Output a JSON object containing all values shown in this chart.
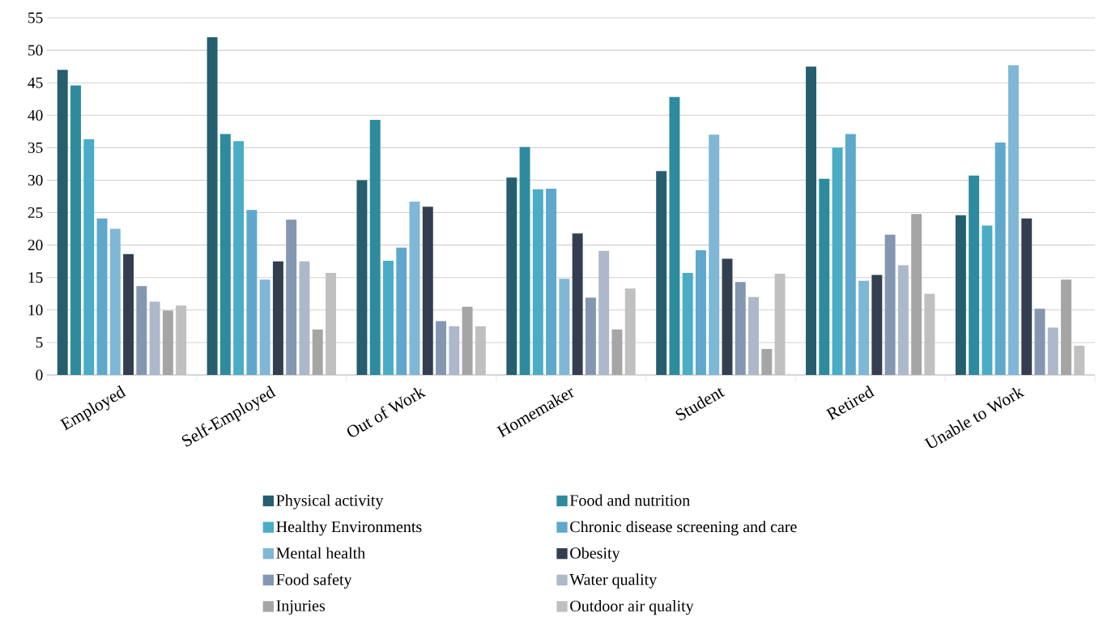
{
  "chart_data": {
    "type": "bar",
    "categories": [
      "Employed",
      "Self-Employed",
      "Out of Work",
      "Homemaker",
      "Student",
      "Retired",
      "Unable to Work"
    ],
    "series": [
      {
        "name": "Physical activity",
        "color": "#255e6e",
        "values": [
          47,
          52,
          30,
          30.4,
          31.4,
          47.5,
          24.6
        ]
      },
      {
        "name": "Food and nutrition",
        "color": "#2e8b9e",
        "values": [
          44.6,
          37.1,
          39.3,
          35.1,
          42.8,
          30.2,
          30.7
        ]
      },
      {
        "name": "Healthy Environments",
        "color": "#4bacc6",
        "values": [
          36.3,
          36.0,
          17.6,
          28.6,
          15.7,
          35.0,
          23.0
        ]
      },
      {
        "name": "Chronic disease screening and care",
        "color": "#5fa8cc",
        "values": [
          24.1,
          25.4,
          19.6,
          28.7,
          19.2,
          37.1,
          35.8
        ]
      },
      {
        "name": "Mental health",
        "color": "#7fb7d6",
        "values": [
          22.5,
          14.7,
          26.7,
          14.8,
          37.0,
          14.5,
          47.7
        ]
      },
      {
        "name": "Obesity",
        "color": "#333f50",
        "values": [
          18.6,
          17.5,
          25.9,
          21.8,
          17.9,
          15.4,
          24.1
        ]
      },
      {
        "name": "Food safety",
        "color": "#8497b0",
        "values": [
          13.7,
          23.9,
          8.3,
          11.9,
          14.3,
          21.6,
          10.2
        ]
      },
      {
        "name": "Water quality",
        "color": "#adb9ca",
        "values": [
          11.3,
          17.5,
          7.5,
          19.1,
          12.0,
          16.9,
          7.3
        ]
      },
      {
        "name": "Injuries",
        "color": "#a5a5a5",
        "values": [
          9.9,
          7.0,
          10.5,
          7.0,
          4.0,
          24.8,
          14.7
        ]
      },
      {
        "name": "Outdoor air quality",
        "color": "#c0c0c0",
        "values": [
          10.7,
          15.7,
          7.5,
          13.3,
          15.6,
          12.5,
          4.5
        ]
      }
    ],
    "ylim": [
      0,
      55
    ],
    "yticks": [
      0,
      5,
      10,
      15,
      20,
      25,
      30,
      35,
      40,
      45,
      50,
      55
    ],
    "grid": "y",
    "legend": "bottom"
  }
}
